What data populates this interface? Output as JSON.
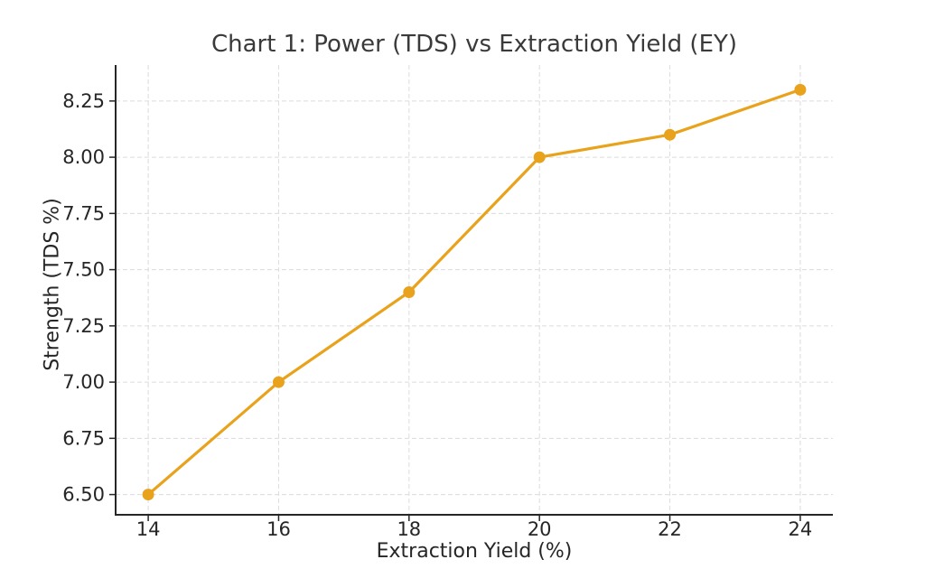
{
  "chart_data": {
    "type": "line",
    "title": "Chart 1: Power (TDS) vs Extraction Yield (EY)",
    "xlabel": "Extraction Yield (%)",
    "ylabel": "Strength (TDS %)",
    "x": [
      14,
      16,
      18,
      20,
      22,
      24
    ],
    "y": [
      6.5,
      7.0,
      7.4,
      8.0,
      8.1,
      8.3
    ],
    "xlim": [
      13.5,
      24.5
    ],
    "ylim": [
      6.41,
      8.41
    ],
    "xticks": {
      "values": [
        14,
        16,
        18,
        20,
        22,
        24
      ],
      "labels": [
        "14",
        "16",
        "18",
        "20",
        "22",
        "24"
      ]
    },
    "yticks": {
      "values": [
        6.5,
        6.75,
        7.0,
        7.25,
        7.5,
        7.75,
        8.0,
        8.25
      ],
      "labels": [
        "6.50",
        "6.75",
        "7.00",
        "7.25",
        "7.50",
        "7.75",
        "8.00",
        "8.25"
      ]
    },
    "grid": true,
    "grid_style": "dashed",
    "legend": false,
    "marker": "circle",
    "colors": {
      "line": "#E8A21C",
      "marker": "#E8A21C",
      "grid": "#dcdcdc",
      "axis": "#262626",
      "tick_text": "#262626",
      "title_text": "#3a3a3a",
      "background": "#ffffff"
    }
  }
}
